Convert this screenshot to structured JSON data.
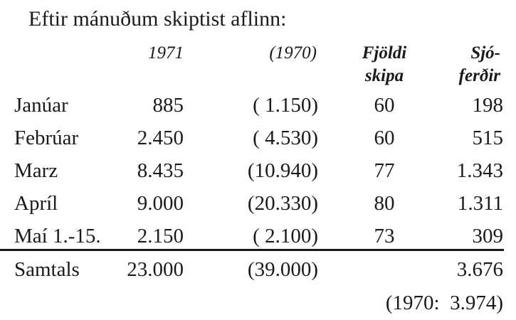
{
  "title": "Eftir mánuðum skiptist aflinn:",
  "headers": {
    "col1971": "1971",
    "col1970": "(1970)",
    "ships_line1": "Fjöldi",
    "ships_line2": "skipa",
    "trips_line1": "Sjó-",
    "trips_line2": "ferðir"
  },
  "rows": [
    {
      "month": "Janúar",
      "y1971": "885",
      "y1970": "( 1.150)",
      "ships": "60",
      "trips": "198"
    },
    {
      "month": "Febrúar",
      "y1971": "2.450",
      "y1970": "( 4.530)",
      "ships": "60",
      "trips": "515"
    },
    {
      "month": "Marz",
      "y1971": "8.435",
      "y1970": "(10.940)",
      "ships": "77",
      "trips": "1.343"
    },
    {
      "month": "Apríl",
      "y1971": "9.000",
      "y1970": "(20.330)",
      "ships": "80",
      "trips": "1.311"
    },
    {
      "month": "Maí 1.-15.",
      "y1971": "2.150",
      "y1970": "( 2.100)",
      "ships": "73",
      "trips": "309"
    }
  ],
  "total": {
    "label": "Samtals",
    "y1971": "23.000",
    "y1970": "(39.000)",
    "trips": "3.676"
  },
  "note": "(1970:  3.974)"
}
